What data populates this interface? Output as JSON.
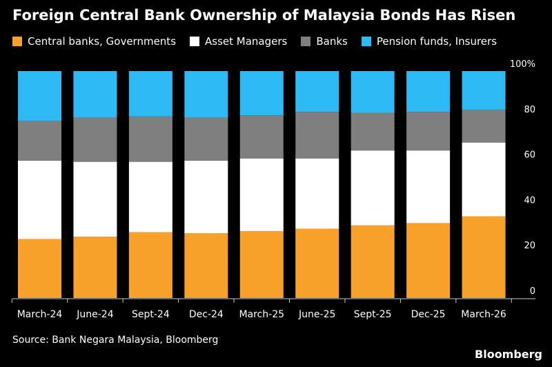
{
  "title": "Foreign Central Bank Ownership of Malaysia Bonds Has Risen",
  "source": "Source: Bank Negara Malaysia, Bloomberg",
  "brand": "Bloomberg",
  "colors": {
    "central": "#f7a12b",
    "asset": "#ffffff",
    "banks": "#7f7f7f",
    "pension": "#2dbaf4",
    "axis": "#cccccc",
    "background": "#000000"
  },
  "chart_data": {
    "type": "bar",
    "stacked": true,
    "categories": [
      "March-24",
      "June-24",
      "Sept-24",
      "Dec-24",
      "March-25",
      "June-25",
      "Sept-25",
      "Dec-25",
      "March-26"
    ],
    "series": [
      {
        "name": "Central banks, Governments",
        "color": "#f7a12b",
        "values": [
          26,
          27,
          29,
          28.5,
          29.5,
          30.5,
          32,
          33,
          36
        ]
      },
      {
        "name": "Asset Managers",
        "color": "#ffffff",
        "values": [
          34.5,
          33,
          31,
          32,
          32,
          31,
          33,
          32,
          32.5
        ]
      },
      {
        "name": "Banks",
        "color": "#7f7f7f",
        "values": [
          17.5,
          19.5,
          20,
          19,
          19,
          20.5,
          16.5,
          17,
          14.5
        ]
      },
      {
        "name": "Pension funds, Insurers",
        "color": "#2dbaf4",
        "values": [
          22,
          20.5,
          20,
          20.5,
          19.5,
          18,
          18.5,
          18,
          17
        ]
      }
    ],
    "ylim": [
      0,
      100
    ],
    "yticks": [
      "0",
      "20",
      "40",
      "60",
      "80",
      "100%"
    ],
    "ytick_values": [
      0,
      20,
      40,
      60,
      80,
      100
    ],
    "ylabel": "",
    "xlabel": ""
  }
}
